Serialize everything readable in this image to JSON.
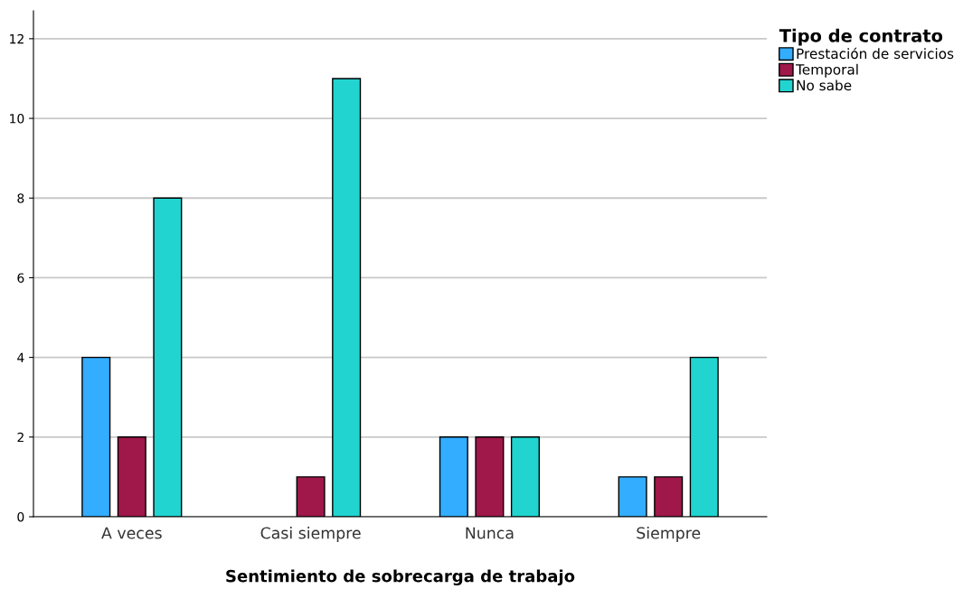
{
  "chart_data": {
    "type": "bar",
    "xlabel": "Sentimiento de sobrecarga de trabajo",
    "legend_title": "Tipo de contrato",
    "categories": [
      "A veces",
      "Casi siempre",
      "Nunca",
      "Siempre"
    ],
    "series": [
      {
        "name": "Prestación de servicios",
        "color": "#33adff",
        "values": [
          4,
          null,
          2,
          1
        ]
      },
      {
        "name": "Temporal",
        "color": "#a0174a",
        "values": [
          2,
          1,
          2,
          1
        ]
      },
      {
        "name": "No sabe",
        "color": "#21d4d0",
        "values": [
          8,
          11,
          2,
          4
        ]
      }
    ],
    "ylim": [
      0,
      12.7
    ],
    "yticks": [
      0,
      2,
      4,
      6,
      8,
      10,
      12
    ],
    "grid": "y",
    "legend": "top right"
  }
}
